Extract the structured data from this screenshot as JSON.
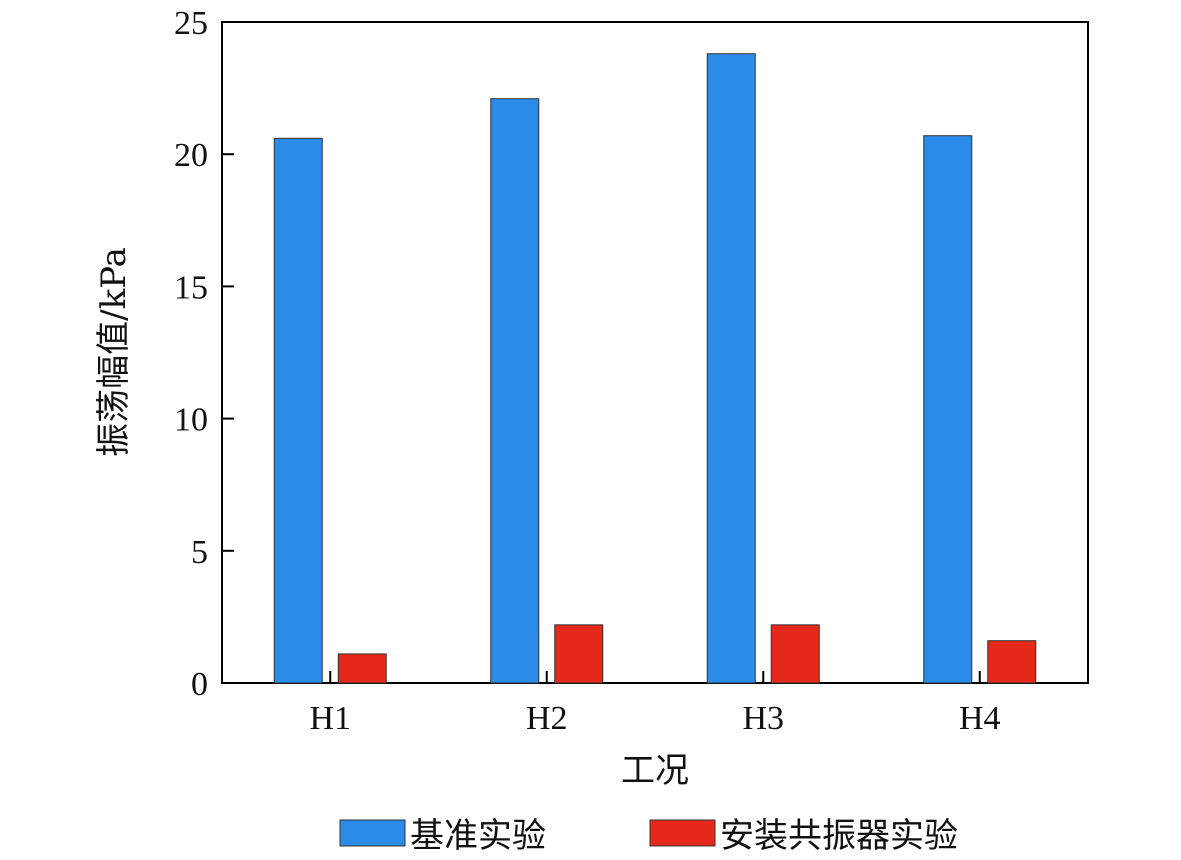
{
  "chart_data": {
    "type": "bar",
    "title": "",
    "xlabel": "工况",
    "ylabel": "振荡幅值/kPa",
    "categories": [
      "H1",
      "H2",
      "H3",
      "H4"
    ],
    "ylim": [
      0,
      25
    ],
    "yticks": [
      0,
      5,
      10,
      15,
      20,
      25
    ],
    "grid": false,
    "legend_position": "bottom",
    "series": [
      {
        "name": "基准实验",
        "color": "#2b8be8",
        "values": [
          20.6,
          22.1,
          23.8,
          20.7
        ]
      },
      {
        "name": "安装共振器实验",
        "color": "#e5281a",
        "values": [
          1.1,
          2.2,
          2.2,
          1.6
        ]
      }
    ]
  }
}
